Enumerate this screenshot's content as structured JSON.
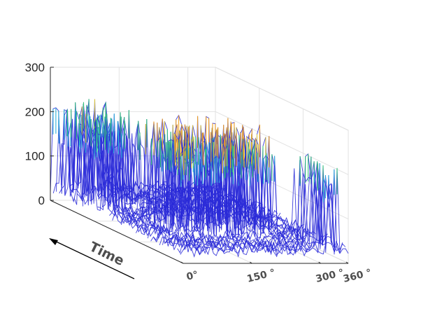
{
  "chart_data": {
    "type": "surface-3d-waterfall",
    "zlim": [
      0,
      300
    ],
    "z_ticks": [
      {
        "value": 0,
        "label": "0"
      },
      {
        "value": 100,
        "label": "100"
      },
      {
        "value": 200,
        "label": "200"
      },
      {
        "value": 300,
        "label": "300"
      }
    ],
    "x_ticks": [
      {
        "value": 0,
        "label": "0°"
      },
      {
        "value": 150,
        "label": "150 °"
      },
      {
        "value": 300,
        "label": "300 °"
      },
      {
        "value": 360,
        "label": "360 °"
      }
    ],
    "xlim": [
      0,
      360
    ],
    "time_label": "Time",
    "grid": true,
    "colormap": [
      "#2a2ad8",
      "#3a5cf0",
      "#2fb0d8",
      "#36c47a",
      "#d8c23a",
      "#f0a020"
    ],
    "segments": [
      {
        "time_start": 0.0,
        "time_end": 0.32,
        "burst_bin_start": 0,
        "burst_bin_end": 120,
        "peak": 235,
        "baseline": 30
      },
      {
        "time_start": 0.32,
        "time_end": 0.45,
        "burst_bin_start": 0,
        "burst_bin_end": 40,
        "peak": 140,
        "baseline": 30
      },
      {
        "time_start": 0.45,
        "time_end": 0.78,
        "burst_bin_start": 60,
        "burst_bin_end": 270,
        "peak": 265,
        "baseline": 30
      },
      {
        "time_start": 0.78,
        "time_end": 1.0,
        "burst_bin_start": 300,
        "burst_bin_end": 345,
        "peak": 225,
        "baseline": 30
      }
    ]
  }
}
